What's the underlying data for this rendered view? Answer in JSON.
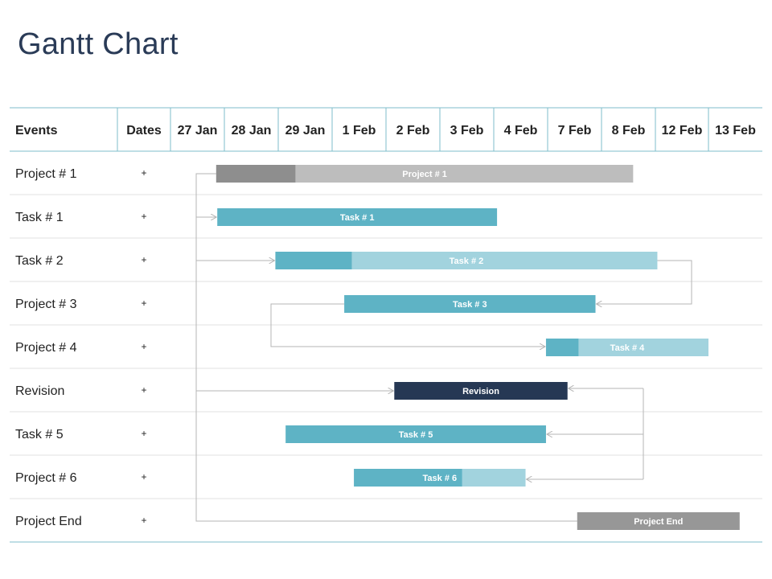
{
  "title": "Gantt Chart",
  "chart_data": {
    "type": "gantt",
    "columns": [
      "Events",
      "Dates",
      "27 Jan",
      "28 Jan",
      "29 Jan",
      "1 Feb",
      "2 Feb",
      "3 Feb",
      "4 Feb",
      "7 Feb",
      "8 Feb",
      "12 Feb",
      "13 Feb"
    ],
    "rows": [
      {
        "event": "Project # 1",
        "dates": "+"
      },
      {
        "event": "Task # 1",
        "dates": "+"
      },
      {
        "event": "Task # 2",
        "dates": "+"
      },
      {
        "event": "Project # 3",
        "dates": "+"
      },
      {
        "event": "Project # 4",
        "dates": "+"
      },
      {
        "event": "Revision",
        "dates": "+"
      },
      {
        "event": "Task # 5",
        "dates": "+"
      },
      {
        "event": "Project # 6",
        "dates": "+"
      },
      {
        "event": "Project End",
        "dates": "+"
      }
    ],
    "bars": [
      {
        "row": 0,
        "label": "Project # 1",
        "start": 0.85,
        "end": 8.6,
        "progress": 0.19,
        "color": "#bdbdbd",
        "progress_color": "#8e8e8e"
      },
      {
        "row": 1,
        "label": "Task # 1",
        "start": 0.87,
        "end": 6.07,
        "progress": 0,
        "color": "#5eb3c5",
        "progress_color": "#5eb3c5"
      },
      {
        "row": 2,
        "label": "Task # 2",
        "start": 1.95,
        "end": 9.05,
        "progress": 0.2,
        "color": "#a2d3de",
        "progress_color": "#5eb3c5"
      },
      {
        "row": 3,
        "label": "Task # 3",
        "start": 3.23,
        "end": 7.9,
        "progress": 0,
        "color": "#5eb3c5",
        "progress_color": "#5eb3c5"
      },
      {
        "row": 4,
        "label": "Task # 4",
        "start": 6.98,
        "end": 10.0,
        "progress": 0.2,
        "color": "#a2d3de",
        "progress_color": "#5eb3c5"
      },
      {
        "row": 5,
        "label": "Revision",
        "start": 4.16,
        "end": 7.38,
        "progress": 0,
        "color": "#263854",
        "progress_color": "#263854"
      },
      {
        "row": 6,
        "label": "Task # 5",
        "start": 2.14,
        "end": 6.98,
        "progress": 0,
        "color": "#5eb3c5",
        "progress_color": "#5eb3c5"
      },
      {
        "row": 7,
        "label": "Task # 6",
        "start": 3.41,
        "end": 6.6,
        "progress": 0.63,
        "color": "#a2d3de",
        "progress_color": "#5eb3c5"
      },
      {
        "row": 8,
        "label": "Project End",
        "start": 7.56,
        "end": 10.58,
        "progress": 0,
        "color": "#979797",
        "progress_color": "#979797"
      }
    ],
    "colors": {
      "grid": "#7fbccb",
      "row_line": "#e2e2e2",
      "arrow": "#b5b5b5",
      "title": "#2a3b57"
    }
  }
}
